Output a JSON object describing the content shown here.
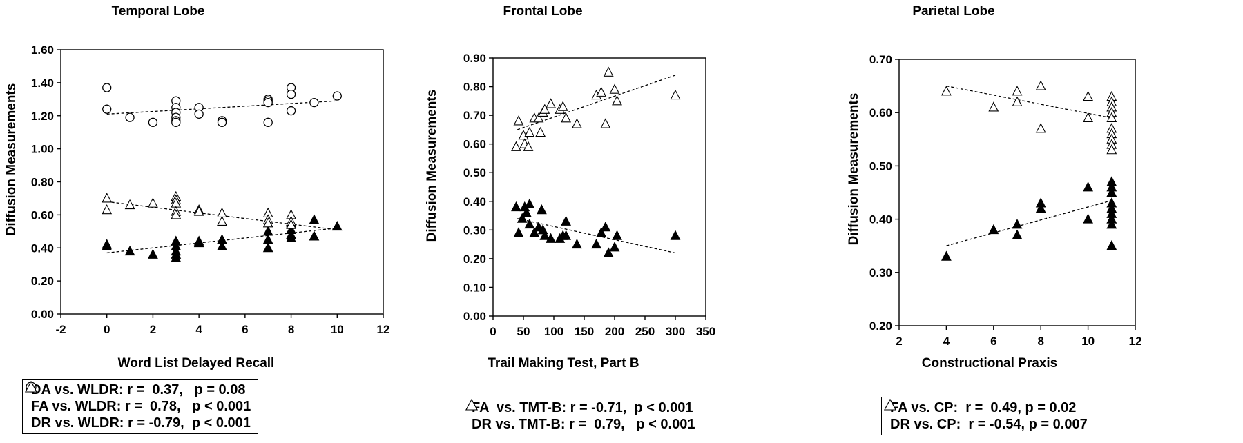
{
  "chart_data": [
    {
      "type": "scatter",
      "title": "Temporal Lobe",
      "xlabel": "Word List Delayed Recall",
      "ylabel": "Diffusion Measurements",
      "xlim": [
        -2,
        12
      ],
      "ylim": [
        0,
        1.6
      ],
      "xticks": [
        "-2",
        "0",
        "2",
        "4",
        "6",
        "8",
        "10",
        "12"
      ],
      "yticks": [
        "0.00",
        "0.20",
        "0.40",
        "0.60",
        "0.80",
        "1.00",
        "1.20",
        "1.40",
        "1.60"
      ],
      "legend": [
        {
          "marker": "open-circle",
          "text": "DA vs. WLDR: r =  0.37,   p = 0.08"
        },
        {
          "marker": "filled-triangle",
          "text": "FA vs. WLDR: r =  0.78,   p < 0.001"
        },
        {
          "marker": "open-triangle",
          "text": "DR vs. WLDR: r = -0.79,  p < 0.001"
        }
      ],
      "series": [
        {
          "name": "DA",
          "marker": "open-circle",
          "x": [
            0,
            0,
            1,
            2,
            3,
            3,
            3,
            3,
            3,
            3,
            4,
            4,
            5,
            5,
            7,
            7,
            7,
            7,
            8,
            8,
            8,
            9,
            10
          ],
          "y": [
            1.37,
            1.24,
            1.19,
            1.16,
            1.29,
            1.25,
            1.22,
            1.19,
            1.17,
            1.16,
            1.25,
            1.21,
            1.17,
            1.16,
            1.3,
            1.29,
            1.28,
            1.16,
            1.37,
            1.33,
            1.23,
            1.28,
            1.32
          ],
          "trend": [
            [
              0,
              1.21
            ],
            [
              10,
              1.29
            ]
          ]
        },
        {
          "name": "FA",
          "marker": "filled-triangle",
          "x": [
            0,
            0,
            1,
            2,
            3,
            3,
            3,
            3,
            3,
            4,
            4,
            5,
            5,
            7,
            7,
            7,
            8,
            8,
            8,
            8,
            9,
            9,
            10
          ],
          "y": [
            0.42,
            0.41,
            0.38,
            0.36,
            0.44,
            0.41,
            0.38,
            0.36,
            0.34,
            0.44,
            0.43,
            0.45,
            0.41,
            0.5,
            0.45,
            0.4,
            0.55,
            0.51,
            0.48,
            0.46,
            0.57,
            0.47,
            0.53
          ],
          "trend": [
            [
              0,
              0.37
            ],
            [
              10,
              0.52
            ]
          ]
        },
        {
          "name": "DR",
          "marker": "open-triangle",
          "x": [
            0,
            0,
            1,
            2,
            3,
            3,
            3,
            3,
            3,
            4,
            4,
            5,
            5,
            7,
            7,
            7,
            8,
            8,
            8
          ],
          "y": [
            0.7,
            0.63,
            0.66,
            0.67,
            0.71,
            0.69,
            0.67,
            0.62,
            0.6,
            0.63,
            0.62,
            0.61,
            0.56,
            0.61,
            0.57,
            0.55,
            0.6,
            0.56,
            0.54
          ],
          "trend": [
            [
              0,
              0.68
            ],
            [
              10,
              0.51
            ]
          ]
        }
      ]
    },
    {
      "type": "scatter",
      "title": "Frontal Lobe",
      "xlabel": "Trail Making Test, Part B",
      "ylabel": "Diffusion Measurements",
      "xlim": [
        0,
        350
      ],
      "ylim": [
        0,
        0.9
      ],
      "xticks": [
        "0",
        "50",
        "100",
        "150",
        "200",
        "250",
        "300",
        "350"
      ],
      "yticks": [
        "0.00",
        "0.10",
        "0.20",
        "0.30",
        "0.40",
        "0.50",
        "0.60",
        "0.70",
        "0.80",
        "0.90"
      ],
      "legend": [
        {
          "marker": "filled-triangle",
          "text": "FA  vs. TMT-B: r = -0.71,  p < 0.001"
        },
        {
          "marker": "open-triangle",
          "text": "DR vs. TMT-B: r =  0.79,   p < 0.001"
        }
      ],
      "series": [
        {
          "name": "FA",
          "marker": "filled-triangle",
          "x": [
            38,
            42,
            48,
            52,
            55,
            60,
            60,
            68,
            75,
            80,
            82,
            85,
            95,
            110,
            115,
            120,
            120,
            138,
            170,
            178,
            185,
            190,
            200,
            204,
            300
          ],
          "y": [
            0.38,
            0.29,
            0.34,
            0.38,
            0.36,
            0.39,
            0.32,
            0.29,
            0.31,
            0.37,
            0.3,
            0.28,
            0.27,
            0.27,
            0.28,
            0.33,
            0.28,
            0.25,
            0.25,
            0.29,
            0.31,
            0.22,
            0.24,
            0.28,
            0.28
          ],
          "trend": [
            [
              40,
              0.34
            ],
            [
              300,
              0.22
            ]
          ]
        },
        {
          "name": "DR",
          "marker": "open-triangle",
          "x": [
            38,
            42,
            50,
            52,
            58,
            60,
            68,
            75,
            78,
            82,
            85,
            95,
            110,
            115,
            120,
            138,
            170,
            178,
            185,
            190,
            200,
            204,
            300
          ],
          "y": [
            0.59,
            0.68,
            0.63,
            0.6,
            0.59,
            0.64,
            0.69,
            0.69,
            0.64,
            0.71,
            0.72,
            0.74,
            0.72,
            0.73,
            0.69,
            0.67,
            0.77,
            0.78,
            0.67,
            0.85,
            0.79,
            0.75,
            0.77
          ],
          "trend": [
            [
              40,
              0.65
            ],
            [
              300,
              0.84
            ]
          ]
        }
      ]
    },
    {
      "type": "scatter",
      "title": "Parietal Lobe",
      "xlabel": "Constructional Praxis",
      "ylabel": "Diffusion Measurements",
      "xlim": [
        2,
        12
      ],
      "ylim": [
        0.2,
        0.7
      ],
      "xticks": [
        "2",
        "4",
        "6",
        "8",
        "10",
        "12"
      ],
      "yticks": [
        "0.20",
        "0.30",
        "0.40",
        "0.50",
        "0.60",
        "0.70"
      ],
      "legend": [
        {
          "marker": "filled-triangle",
          "text": "FA vs. CP:  r =  0.49, p = 0.02"
        },
        {
          "marker": "open-triangle",
          "text": "DR vs. CP:  r = -0.54, p = 0.007"
        }
      ],
      "series": [
        {
          "name": "FA",
          "marker": "filled-triangle",
          "x": [
            4,
            6,
            7,
            7,
            8,
            8,
            10,
            10,
            11,
            11,
            11,
            11,
            11,
            11,
            11,
            11,
            11,
            11
          ],
          "y": [
            0.33,
            0.38,
            0.39,
            0.37,
            0.43,
            0.42,
            0.46,
            0.4,
            0.47,
            0.46,
            0.45,
            0.43,
            0.42,
            0.41,
            0.4,
            0.4,
            0.39,
            0.35
          ],
          "trend": [
            [
              4,
              0.35
            ],
            [
              11,
              0.435
            ]
          ]
        },
        {
          "name": "DR",
          "marker": "open-triangle",
          "x": [
            4,
            6,
            7,
            7,
            8,
            8,
            10,
            10,
            11,
            11,
            11,
            11,
            11,
            11,
            11,
            11,
            11,
            11,
            11
          ],
          "y": [
            0.64,
            0.61,
            0.64,
            0.62,
            0.65,
            0.57,
            0.63,
            0.59,
            0.63,
            0.62,
            0.61,
            0.61,
            0.6,
            0.59,
            0.57,
            0.56,
            0.55,
            0.54,
            0.53
          ],
          "trend": [
            [
              4,
              0.65
            ],
            [
              11,
              0.59
            ]
          ]
        }
      ]
    }
  ]
}
